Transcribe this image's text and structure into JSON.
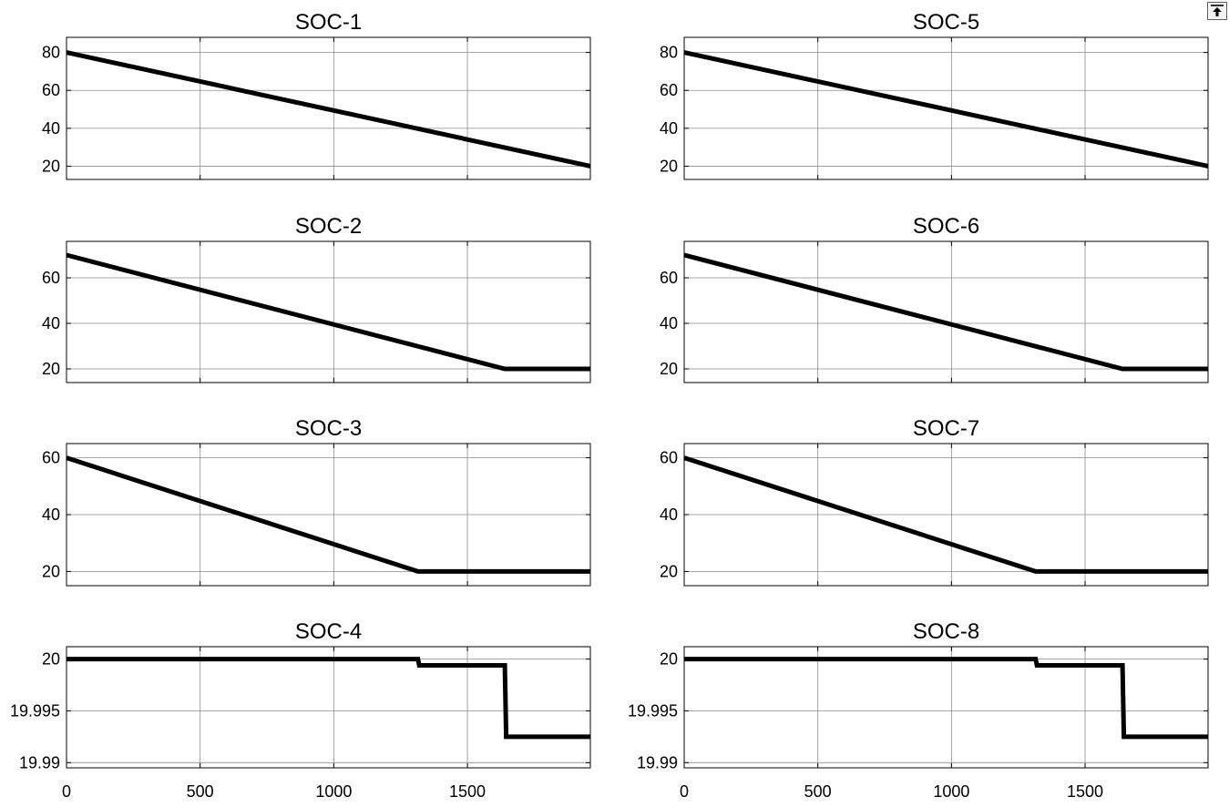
{
  "toolbar": {
    "export_icon": "export-icon"
  },
  "chart_data": [
    {
      "type": "line",
      "title": "SOC-1",
      "xlabel": "",
      "ylabel": "",
      "xlim": [
        0,
        1960
      ],
      "ylim": [
        13,
        88
      ],
      "grid": true,
      "xticks": [
        0,
        500,
        1000,
        1500
      ],
      "xtick_labels": [
        "",
        "",
        "",
        ""
      ],
      "yticks": [
        20,
        40,
        60,
        80
      ],
      "ytick_labels": [
        "20",
        "40",
        "60",
        "80"
      ],
      "series": [
        {
          "x": [
            0,
            1960
          ],
          "y": [
            80,
            20
          ]
        }
      ]
    },
    {
      "type": "line",
      "title": "SOC-2",
      "xlabel": "",
      "ylabel": "",
      "xlim": [
        0,
        1960
      ],
      "ylim": [
        14,
        76
      ],
      "grid": true,
      "xticks": [
        0,
        500,
        1000,
        1500
      ],
      "xtick_labels": [
        "",
        "",
        "",
        ""
      ],
      "yticks": [
        20,
        40,
        60
      ],
      "ytick_labels": [
        "20",
        "40",
        "60"
      ],
      "series": [
        {
          "x": [
            0,
            1640,
            1960
          ],
          "y": [
            70,
            20,
            20
          ]
        }
      ]
    },
    {
      "type": "line",
      "title": "SOC-3",
      "xlabel": "",
      "ylabel": "",
      "xlim": [
        0,
        1960
      ],
      "ylim": [
        15,
        65
      ],
      "grid": true,
      "xticks": [
        0,
        500,
        1000,
        1500
      ],
      "xtick_labels": [
        "",
        "",
        "",
        ""
      ],
      "yticks": [
        20,
        40,
        60
      ],
      "ytick_labels": [
        "20",
        "40",
        "60"
      ],
      "series": [
        {
          "x": [
            0,
            1315,
            1960
          ],
          "y": [
            60,
            20,
            20
          ]
        }
      ]
    },
    {
      "type": "line",
      "title": "SOC-4",
      "xlabel": "",
      "ylabel": "",
      "xlim": [
        0,
        1960
      ],
      "ylim": [
        19.9895,
        20.0012
      ],
      "grid": true,
      "xticks": [
        0,
        500,
        1000,
        1500
      ],
      "xtick_labels": [
        "0",
        "500",
        "1000",
        "1500"
      ],
      "yticks": [
        19.99,
        19.995,
        20
      ],
      "ytick_labels": [
        "19.99",
        "19.995",
        "20"
      ],
      "series": [
        {
          "x": [
            0,
            1315,
            1320,
            1640,
            1645,
            1960
          ],
          "y": [
            20,
            20,
            19.9994,
            19.9994,
            19.9925,
            19.9925
          ]
        }
      ]
    },
    {
      "type": "line",
      "title": "SOC-5",
      "xlabel": "",
      "ylabel": "",
      "xlim": [
        0,
        1960
      ],
      "ylim": [
        13,
        88
      ],
      "grid": true,
      "xticks": [
        0,
        500,
        1000,
        1500
      ],
      "xtick_labels": [
        "",
        "",
        "",
        ""
      ],
      "yticks": [
        20,
        40,
        60,
        80
      ],
      "ytick_labels": [
        "20",
        "40",
        "60",
        "80"
      ],
      "series": [
        {
          "x": [
            0,
            1960
          ],
          "y": [
            80,
            20
          ]
        }
      ]
    },
    {
      "type": "line",
      "title": "SOC-6",
      "xlabel": "",
      "ylabel": "",
      "xlim": [
        0,
        1960
      ],
      "ylim": [
        14,
        76
      ],
      "grid": true,
      "xticks": [
        0,
        500,
        1000,
        1500
      ],
      "xtick_labels": [
        "",
        "",
        "",
        ""
      ],
      "yticks": [
        20,
        40,
        60
      ],
      "ytick_labels": [
        "20",
        "40",
        "60"
      ],
      "series": [
        {
          "x": [
            0,
            1640,
            1960
          ],
          "y": [
            70,
            20,
            20
          ]
        }
      ]
    },
    {
      "type": "line",
      "title": "SOC-7",
      "xlabel": "",
      "ylabel": "",
      "xlim": [
        0,
        1960
      ],
      "ylim": [
        15,
        65
      ],
      "grid": true,
      "xticks": [
        0,
        500,
        1000,
        1500
      ],
      "xtick_labels": [
        "",
        "",
        "",
        ""
      ],
      "yticks": [
        20,
        40,
        60
      ],
      "ytick_labels": [
        "20",
        "40",
        "60"
      ],
      "series": [
        {
          "x": [
            0,
            1315,
            1960
          ],
          "y": [
            60,
            20,
            20
          ]
        }
      ]
    },
    {
      "type": "line",
      "title": "SOC-8",
      "xlabel": "",
      "ylabel": "",
      "xlim": [
        0,
        1960
      ],
      "ylim": [
        19.9895,
        20.0012
      ],
      "grid": true,
      "xticks": [
        0,
        500,
        1000,
        1500
      ],
      "xtick_labels": [
        "0",
        "500",
        "1000",
        "1500"
      ],
      "yticks": [
        19.99,
        19.995,
        20
      ],
      "ytick_labels": [
        "19.99",
        "19.995",
        "20"
      ],
      "series": [
        {
          "x": [
            0,
            1315,
            1320,
            1640,
            1645,
            1960
          ],
          "y": [
            20,
            20,
            19.9994,
            19.9994,
            19.9925,
            19.9925
          ]
        }
      ]
    }
  ]
}
